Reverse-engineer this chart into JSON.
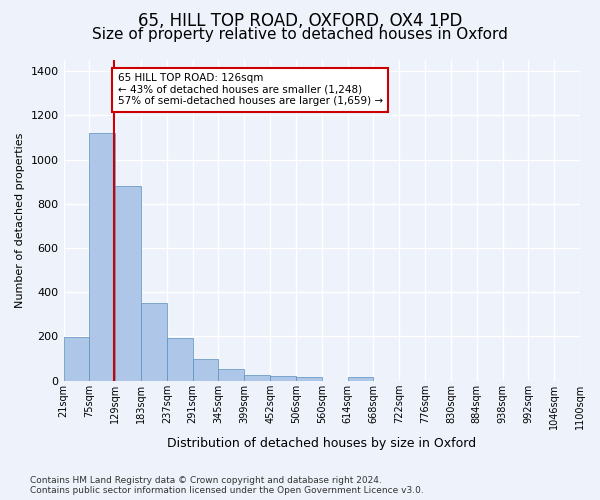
{
  "title_line1": "65, HILL TOP ROAD, OXFORD, OX4 1PD",
  "title_line2": "Size of property relative to detached houses in Oxford",
  "xlabel": "Distribution of detached houses by size in Oxford",
  "ylabel": "Number of detached properties",
  "footnote": "Contains HM Land Registry data © Crown copyright and database right 2024.\nContains public sector information licensed under the Open Government Licence v3.0.",
  "bin_labels": [
    "21sqm",
    "75sqm",
    "129sqm",
    "183sqm",
    "237sqm",
    "291sqm",
    "345sqm",
    "399sqm",
    "452sqm",
    "506sqm",
    "560sqm",
    "614sqm",
    "668sqm",
    "722sqm",
    "776sqm",
    "830sqm",
    "884sqm",
    "938sqm",
    "992sqm",
    "1046sqm",
    "1100sqm"
  ],
  "bar_values": [
    197,
    1120,
    880,
    350,
    193,
    100,
    52,
    25,
    22,
    18,
    0,
    15,
    0,
    0,
    0,
    0,
    0,
    0,
    0,
    0
  ],
  "bar_color": "#aec6e8",
  "bar_edge_color": "#5a8fc0",
  "ylim": [
    0,
    1450
  ],
  "yticks": [
    0,
    200,
    400,
    600,
    800,
    1000,
    1200,
    1400
  ],
  "annotation_text": "65 HILL TOP ROAD: 126sqm\n← 43% of detached houses are smaller (1,248)\n57% of semi-detached houses are larger (1,659) →",
  "annotation_box_color": "#ffffff",
  "annotation_box_edge_color": "#cc0000",
  "vline_color": "#cc0000",
  "background_color": "#eef2fb",
  "grid_color": "#ffffff",
  "title_fontsize": 12,
  "subtitle_fontsize": 11
}
